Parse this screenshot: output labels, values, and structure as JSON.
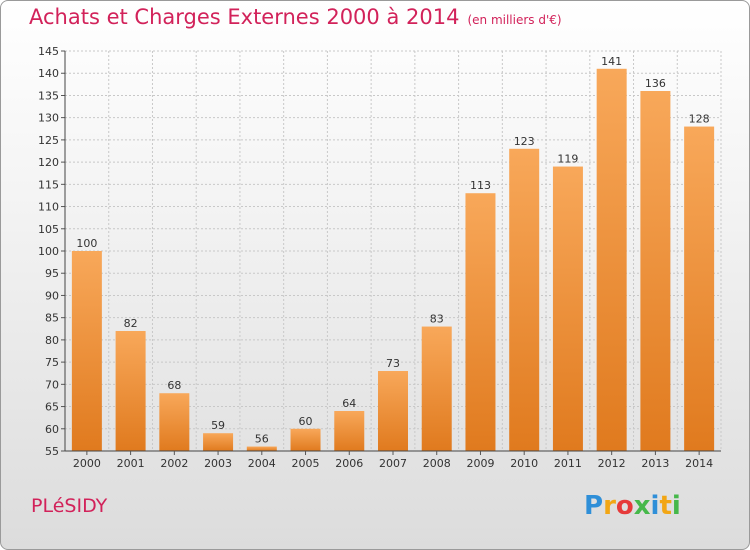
{
  "header": {
    "title": "Achats et Charges Externes 2000 à 2014",
    "unit": "(en milliers d'€)"
  },
  "footer": {
    "commune": "PLéSIDY",
    "logo_letters": [
      "P",
      "r",
      "o",
      "x",
      "i",
      "t",
      "i"
    ]
  },
  "colors": {
    "bar_top": "#f8a85a",
    "bar_bottom": "#e07a1e",
    "accent": "#d2225a",
    "logo": [
      "#2f8fd8",
      "#f2a614",
      "#e63a3a",
      "#46b84a",
      "#2f8fd8",
      "#f2a614",
      "#46b84a"
    ]
  },
  "chart_data": {
    "type": "bar",
    "title": "Achats et Charges Externes 2000 à 2014",
    "subtitle": "(en milliers d'€)",
    "categories": [
      "2000",
      "2001",
      "2002",
      "2003",
      "2004",
      "2005",
      "2006",
      "2007",
      "2008",
      "2009",
      "2010",
      "2011",
      "2012",
      "2013",
      "2014"
    ],
    "values": [
      100,
      82,
      68,
      59,
      56,
      60,
      64,
      73,
      83,
      113,
      123,
      119,
      141,
      136,
      128
    ],
    "ylim": [
      55,
      145
    ],
    "ytick_step": 5,
    "grid": true,
    "data_labels": true,
    "legend": "none"
  }
}
